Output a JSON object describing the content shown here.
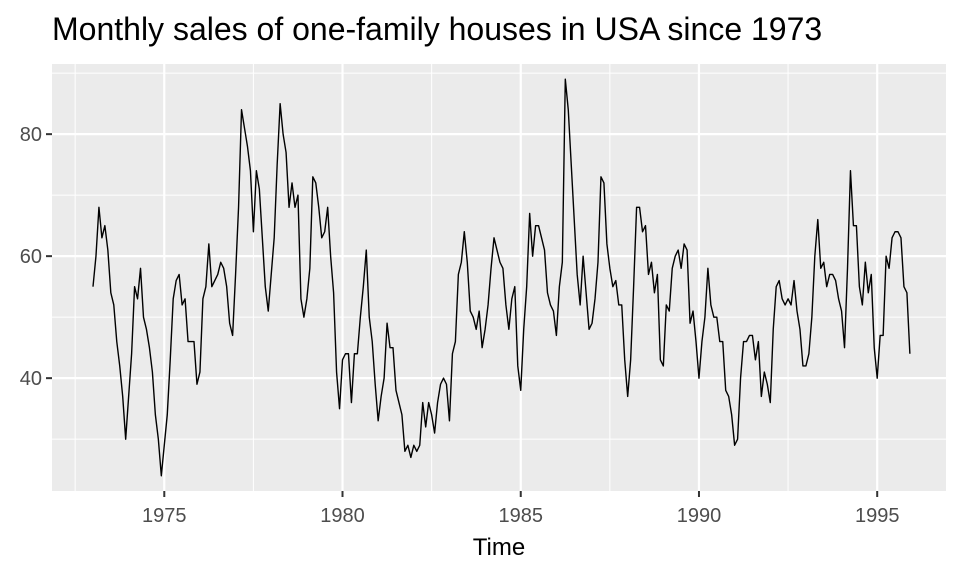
{
  "chart_data": {
    "type": "line",
    "title": "Monthly sales of one-family houses in USA since 1973",
    "xlabel": "Time",
    "ylabel": "",
    "xlim": [
      1971.85,
      1996.93
    ],
    "ylim": [
      21.5,
      91.5
    ],
    "x_ticks": [
      1975,
      1980,
      1985,
      1990,
      1995
    ],
    "x_tick_labels": [
      "1975",
      "1980",
      "1985",
      "1990",
      "1995"
    ],
    "y_ticks": [
      40,
      60,
      80
    ],
    "y_tick_labels": [
      "40",
      "60",
      "80"
    ],
    "grid": true,
    "panel_color": "#ebebeb",
    "grid_color": "#ffffff",
    "line_color": "#000000",
    "legend": "none",
    "series": [
      {
        "start": 1973.0,
        "frequency": 12,
        "values": [
          55,
          60,
          68,
          63,
          65,
          61,
          54,
          52,
          46,
          42,
          37,
          30,
          37,
          44,
          55,
          53,
          58,
          50,
          48,
          45,
          41,
          34,
          30,
          24,
          29,
          34,
          43,
          53,
          56,
          57,
          52,
          53,
          46,
          46,
          46,
          39,
          41,
          53,
          55,
          62,
          55,
          56,
          57,
          59,
          58,
          55,
          49,
          47,
          57,
          68,
          84,
          81,
          78,
          74,
          64,
          74,
          71,
          63,
          55,
          51,
          57,
          63,
          75,
          85,
          80,
          77,
          68,
          72,
          68,
          70,
          53,
          50,
          53,
          58,
          73,
          72,
          68,
          63,
          64,
          68,
          60,
          54,
          41,
          35,
          43,
          44,
          44,
          36,
          44,
          44,
          50,
          55,
          61,
          50,
          46,
          39,
          33,
          37,
          40,
          49,
          45,
          45,
          38,
          36,
          34,
          28,
          29,
          27,
          29,
          28,
          29,
          36,
          32,
          36,
          34,
          31,
          36,
          39,
          40,
          39,
          33,
          44,
          46,
          57,
          59,
          64,
          59,
          51,
          50,
          48,
          51,
          45,
          48,
          52,
          58,
          63,
          61,
          59,
          58,
          52,
          48,
          53,
          55,
          42,
          38,
          48,
          55,
          67,
          60,
          65,
          65,
          63,
          61,
          54,
          52,
          51,
          47,
          55,
          59,
          89,
          84,
          75,
          66,
          57,
          52,
          60,
          54,
          48,
          49,
          53,
          59,
          73,
          72,
          62,
          58,
          55,
          56,
          52,
          52,
          43,
          37,
          43,
          55,
          68,
          68,
          64,
          65,
          57,
          59,
          54,
          57,
          43,
          42,
          52,
          51,
          58,
          60,
          61,
          58,
          62,
          61,
          49,
          51,
          46,
          40,
          46,
          50,
          58,
          52,
          50,
          50,
          46,
          46,
          38,
          37,
          34,
          29,
          30,
          40,
          46,
          46,
          47,
          47,
          43,
          46,
          37,
          41,
          39,
          36,
          48,
          55,
          56,
          53,
          52,
          53,
          52,
          56,
          51,
          48,
          42,
          42,
          44,
          50,
          60,
          66,
          58,
          59,
          55,
          57,
          57,
          56,
          53,
          51,
          45,
          58,
          74,
          65,
          65,
          55,
          52,
          59,
          54,
          57,
          45,
          40,
          47,
          47,
          60,
          58,
          63,
          64,
          64,
          63,
          55,
          54,
          44
        ]
      }
    ]
  }
}
